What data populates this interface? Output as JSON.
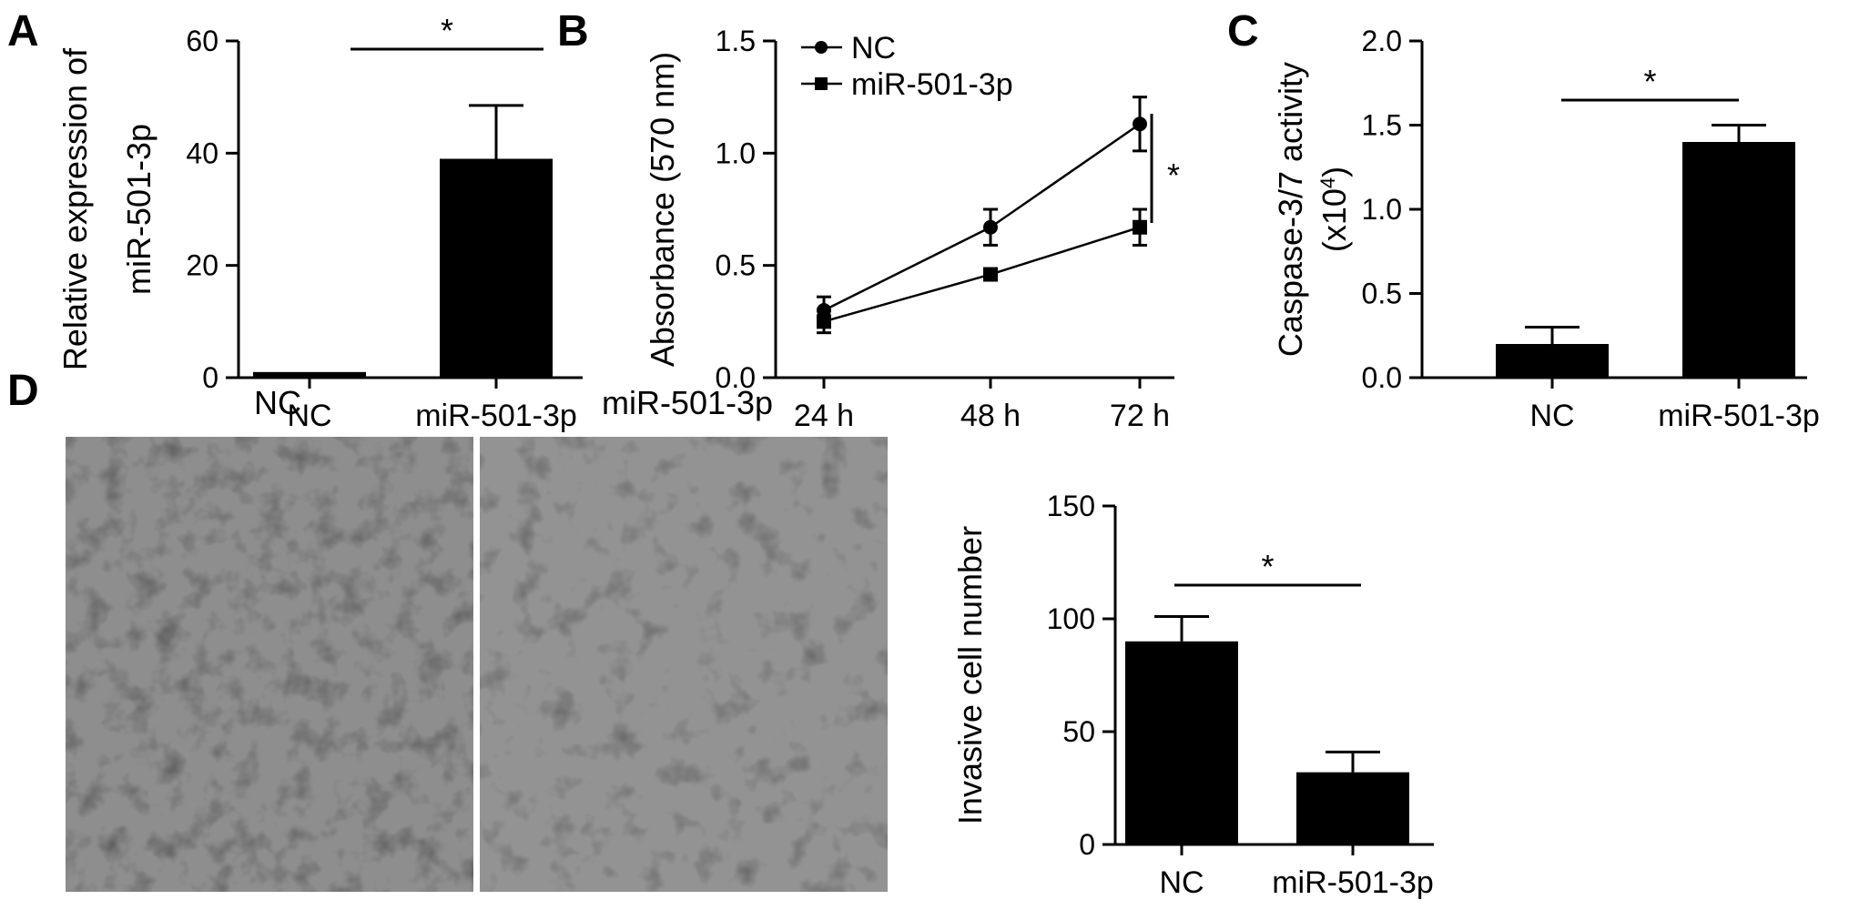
{
  "panels": {
    "A": "A",
    "B": "B",
    "C": "C",
    "D": "D"
  },
  "micrograph_labels": {
    "nc": "NC",
    "mir": "miR-501-3p"
  },
  "chart_data": [
    {
      "id": "A",
      "type": "bar",
      "categories": [
        "NC",
        "miR-501-3p"
      ],
      "values": [
        1,
        39
      ],
      "errors": [
        0,
        9.5
      ],
      "ylabel_lines": [
        "Relative expression of",
        "miR-501-3p"
      ],
      "ylim": [
        0,
        60
      ],
      "yticks": [
        "0",
        "20",
        "40",
        "60"
      ],
      "significance": "*"
    },
    {
      "id": "B",
      "type": "line",
      "x": [
        "24 h",
        "48 h",
        "72 h"
      ],
      "series": [
        {
          "name": "NC",
          "marker": "circle",
          "values": [
            0.3,
            0.67,
            1.13
          ],
          "errors": [
            0.06,
            0.08,
            0.12
          ]
        },
        {
          "name": "miR-501-3p",
          "marker": "square",
          "values": [
            0.25,
            0.46,
            0.67
          ],
          "errors": [
            0.05,
            0.02,
            0.08
          ]
        }
      ],
      "ylabel": "Absorbance (570 nm)",
      "ylim": [
        0,
        1.5
      ],
      "yticks": [
        "0.0",
        "0.5",
        "1.0",
        "1.5"
      ],
      "significance": "*",
      "legend_position": "top-left"
    },
    {
      "id": "C",
      "type": "bar",
      "categories": [
        "NC",
        "miR-501-3p"
      ],
      "values": [
        0.2,
        1.4
      ],
      "errors": [
        0.1,
        0.1
      ],
      "ylabel_lines": [
        "Caspase-3/7 activity",
        "(x10",
        "4",
        ")"
      ],
      "ylim": [
        0,
        2.0
      ],
      "yticks": [
        "0.0",
        "0.5",
        "1.0",
        "1.5",
        "2.0"
      ],
      "significance": "*"
    },
    {
      "id": "D",
      "type": "bar",
      "categories": [
        "NC",
        "miR-501-3p"
      ],
      "values": [
        90,
        32
      ],
      "errors": [
        11,
        9
      ],
      "ylabel": "Invasive cell number",
      "ylim": [
        0,
        150
      ],
      "yticks": [
        "0",
        "50",
        "100",
        "150"
      ],
      "significance": "*"
    }
  ]
}
